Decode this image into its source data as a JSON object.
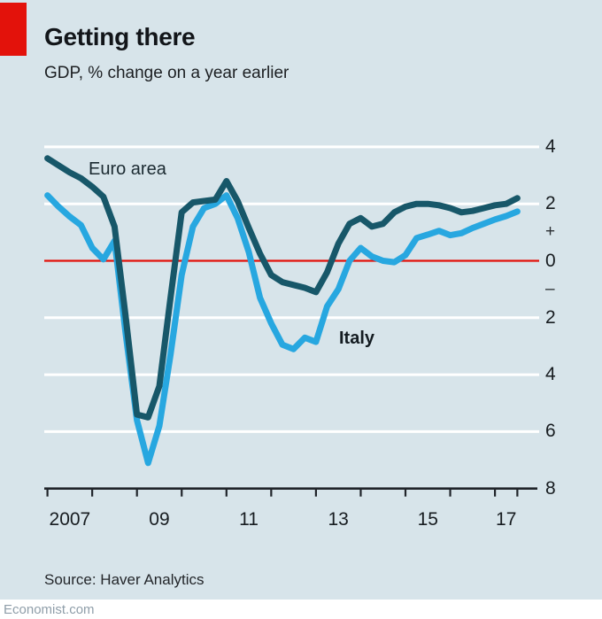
{
  "header": {
    "title": "Getting there",
    "subtitle": "GDP, % change on a year earlier"
  },
  "chart_data": {
    "type": "line",
    "title": "Getting there",
    "subtitle": "GDP, % change on a year earlier",
    "x_start": 2007.0,
    "x_step": 0.25,
    "x_unit": "year (quarterly data)",
    "ylim": [
      -8,
      4
    ],
    "xlim": [
      2007,
      2017.9
    ],
    "grid": true,
    "legend_position": "inline-labels",
    "series": [
      {
        "name": "Euro area",
        "color": "#175769",
        "values": [
          3.6,
          3.35,
          3.1,
          2.9,
          2.6,
          2.25,
          1.2,
          -2.0,
          -5.4,
          -5.5,
          -4.4,
          -1.3,
          1.7,
          2.05,
          2.1,
          2.15,
          2.8,
          2.1,
          1.15,
          0.25,
          -0.5,
          -0.75,
          -0.85,
          -0.95,
          -1.1,
          -0.4,
          0.6,
          1.3,
          1.5,
          1.2,
          1.3,
          1.7,
          1.9,
          2.0,
          2.0,
          1.95,
          1.85,
          1.7,
          1.75,
          1.85,
          1.95,
          2.0,
          2.2
        ]
      },
      {
        "name": "Italy",
        "color": "#27a7e0",
        "values": [
          2.3,
          1.9,
          1.55,
          1.25,
          0.45,
          0.05,
          0.7,
          -2.6,
          -5.6,
          -7.1,
          -5.8,
          -3.3,
          -0.5,
          1.2,
          1.85,
          2.0,
          2.3,
          1.5,
          0.3,
          -1.3,
          -2.2,
          -2.95,
          -3.1,
          -2.7,
          -2.85,
          -1.6,
          -1.0,
          0.0,
          0.45,
          0.15,
          0.0,
          -0.05,
          0.2,
          0.8,
          0.92,
          1.05,
          0.9,
          0.97,
          1.15,
          1.3,
          1.45,
          1.57,
          1.73
        ]
      }
    ],
    "x_axis": {
      "tick_years": [
        2007,
        2008,
        2009,
        2010,
        2011,
        2012,
        2013,
        2014,
        2015,
        2016,
        2017,
        2017.5
      ],
      "labels": [
        {
          "text": "2007",
          "t": 2007.5
        },
        {
          "text": "09",
          "t": 2009.5
        },
        {
          "text": "11",
          "t": 2011.5
        },
        {
          "text": "13",
          "t": 2013.5
        },
        {
          "text": "15",
          "t": 2015.5
        },
        {
          "text": "17",
          "t": 2017.25
        }
      ]
    },
    "y_axis": {
      "labels": [
        {
          "text": "4",
          "v": 4,
          "sign": false
        },
        {
          "text": "2",
          "v": 2,
          "sign": false
        },
        {
          "text": "+",
          "v": 1,
          "sign": true
        },
        {
          "text": "0",
          "v": 0,
          "sign": false
        },
        {
          "text": "–",
          "v": -1,
          "sign": true
        },
        {
          "text": "2",
          "v": -2,
          "sign": false
        },
        {
          "text": "4",
          "v": -4,
          "sign": false
        },
        {
          "text": "6",
          "v": -6,
          "sign": false
        },
        {
          "text": "8",
          "v": -8,
          "sign": false
        }
      ],
      "gridline_values": [
        4,
        2,
        -2,
        -4,
        -6
      ],
      "zero_line_value": 0,
      "bottom_axis_value": -8
    }
  },
  "colors": {
    "background": "#d7e4ea",
    "accent_red": "#e3120b",
    "gridline": "#ffffff",
    "axis": "#20242a",
    "euro_area_line": "#175769",
    "italy_line": "#27a7e0"
  },
  "source": {
    "text": "Source: Haver Analytics"
  },
  "footer": {
    "text": "Economist.com"
  }
}
